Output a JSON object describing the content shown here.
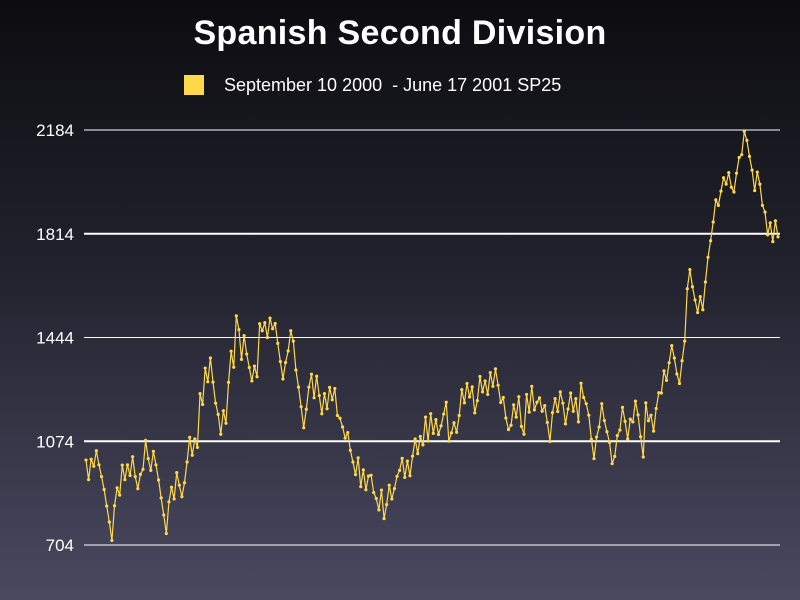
{
  "chart_data": {
    "type": "line",
    "title": "Spanish Second Division",
    "xlabel": "",
    "ylabel": "",
    "ylim": [
      704,
      2184
    ],
    "yticks": [
      704,
      1074,
      1444,
      1814,
      2184
    ],
    "grid": true,
    "legend_position": "top",
    "series": [
      {
        "name": "September 10 2000  - June 17 2001 SP25",
        "color": "#ffd84a",
        "values": [
          1007,
          937,
          1010,
          985,
          1040,
          990,
          948,
          902,
          843,
          786,
          720,
          844,
          908,
          882,
          989,
          937,
          990,
          952,
          1019,
          948,
          905,
          956,
          974,
          1077,
          1012,
          970,
          1038,
          990,
          936,
          872,
          811,
          745,
          858,
          910,
          868,
          962,
          917,
          876,
          926,
          1000,
          1088,
          1024,
          1082,
          1052,
          1244,
          1205,
          1335,
          1286,
          1371,
          1285,
          1210,
          1170,
          1099,
          1183,
          1138,
          1284,
          1395,
          1338,
          1521,
          1472,
          1366,
          1451,
          1385,
          1337,
          1289,
          1342,
          1304,
          1493,
          1468,
          1497,
          1444,
          1513,
          1475,
          1494,
          1423,
          1358,
          1296,
          1355,
          1396,
          1468,
          1431,
          1328,
          1267,
          1197,
          1122,
          1188,
          1267,
          1313,
          1229,
          1306,
          1237,
          1172,
          1244,
          1190,
          1266,
          1222,
          1262,
          1166,
          1156,
          1125,
          1085,
          1105,
          1042,
          1000,
          955,
          1015,
          912,
          972,
          901,
          950,
          953,
          891,
          870,
          829,
          900,
          798,
          848,
          917,
          868,
          905,
          949,
          970,
          1013,
          945,
          1003,
          951,
          1021,
          1082,
          1030,
          1091,
          1061,
          1160,
          1075,
          1172,
          1102,
          1151,
          1098,
          1129,
          1171,
          1213,
          1074,
          1104,
          1140,
          1106,
          1166,
          1258,
          1211,
          1280,
          1232,
          1268,
          1175,
          1219,
          1305,
          1250,
          1289,
          1241,
          1319,
          1270,
          1332,
          1274,
          1212,
          1230,
          1157,
          1116,
          1131,
          1204,
          1160,
          1233,
          1127,
          1099,
          1241,
          1178,
          1270,
          1186,
          1213,
          1229,
          1181,
          1201,
          1141,
          1073,
          1176,
          1226,
          1180,
          1250,
          1210,
          1136,
          1189,
          1246,
          1181,
          1226,
          1143,
          1281,
          1230,
          1208,
          1167,
          1081,
          1012,
          1089,
          1125,
          1208,
          1148,
          1108,
          1070,
          994,
          1020,
          1094,
          1114,
          1195,
          1145,
          1082,
          1153,
          1143,
          1217,
          1168,
          1090,
          1018,
          1211,
          1147,
          1167,
          1110,
          1191,
          1247,
          1246,
          1325,
          1291,
          1354,
          1415,
          1371,
          1314,
          1280,
          1361,
          1431,
          1618,
          1686,
          1625,
          1578,
          1533,
          1590,
          1543,
          1642,
          1730,
          1789,
          1856,
          1935,
          1915,
          1966,
          2014,
          1991,
          2032,
          1980,
          1963,
          2030,
          2086,
          2096,
          2179,
          2147,
          2090,
          2041,
          1968,
          2034,
          1991,
          1915,
          1891,
          1810,
          1853,
          1786,
          1860,
          1803
        ]
      }
    ]
  }
}
